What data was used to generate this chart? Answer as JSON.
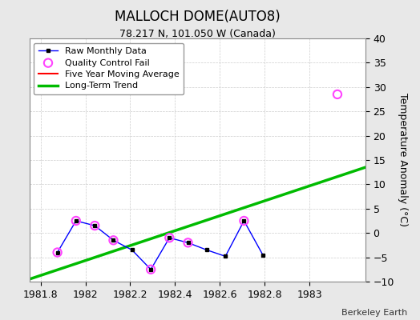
{
  "title": "MALLOCH DOME(AUTO8)",
  "subtitle": "78.217 N, 101.050 W (Canada)",
  "ylabel": "Temperature Anomaly (°C)",
  "watermark": "Berkeley Earth",
  "xlim": [
    1981.75,
    1983.25
  ],
  "ylim": [
    -10,
    40
  ],
  "yticks": [
    -10,
    -5,
    0,
    5,
    10,
    15,
    20,
    25,
    30,
    35,
    40
  ],
  "xticks": [
    1981.8,
    1982.0,
    1982.2,
    1982.4,
    1982.6,
    1982.8,
    1983.0
  ],
  "xticklabels": [
    "1981.8",
    "1982",
    "1982.2",
    "1982.4",
    "1982.6",
    "1982.8",
    "1983"
  ],
  "raw_x": [
    1981.875,
    1981.958,
    1982.042,
    1982.125,
    1982.208,
    1982.292,
    1982.375,
    1982.458,
    1982.542,
    1982.625,
    1982.708,
    1982.792
  ],
  "raw_y": [
    -4.0,
    2.5,
    1.5,
    -1.5,
    -3.5,
    -7.5,
    -1.0,
    -2.0,
    -3.5,
    -4.8,
    2.5,
    -4.5
  ],
  "qc_fail_x": [
    1981.875,
    1981.958,
    1982.042,
    1982.125,
    1982.292,
    1982.375,
    1982.458,
    1982.708,
    1983.125
  ],
  "qc_fail_y": [
    -4.0,
    2.5,
    1.5,
    -1.5,
    -7.5,
    -1.0,
    -2.0,
    2.5,
    28.5
  ],
  "trend_x": [
    1981.75,
    1983.25
  ],
  "trend_y": [
    -9.5,
    13.5
  ],
  "bg_color": "#e8e8e8",
  "plot_bg_color": "#ffffff",
  "raw_line_color": "#0000ff",
  "raw_marker_color": "#000000",
  "qc_marker_color": "#ff44ff",
  "trend_color": "#00bb00",
  "ma_color": "#ff0000",
  "grid_color": "#cccccc",
  "title_fontsize": 12,
  "subtitle_fontsize": 9,
  "tick_fontsize": 9,
  "ylabel_fontsize": 9,
  "legend_fontsize": 8
}
